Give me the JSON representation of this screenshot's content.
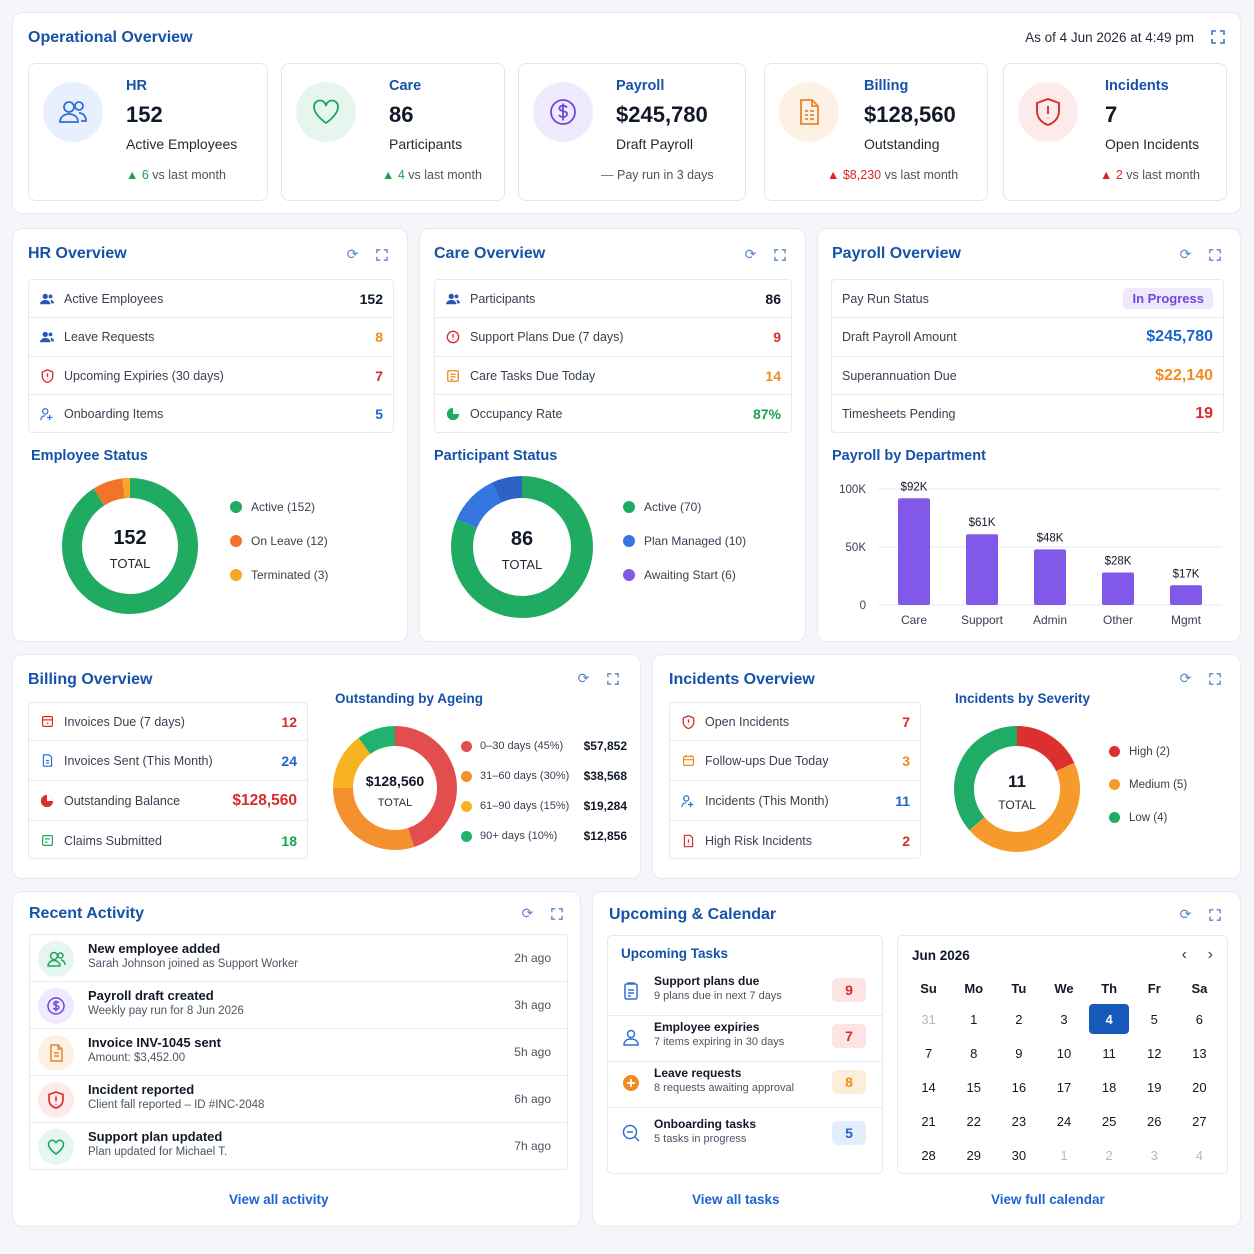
{
  "overview": {
    "title": "Operational Overview",
    "as_of": "As of 4 Jun 2026 at 4:49 pm",
    "kpis": [
      {
        "label": "HR",
        "value": "152",
        "desc": "Active Employees",
        "trend_value": "6",
        "trend_text": "vs last month",
        "icon": "users-icon"
      },
      {
        "label": "Care",
        "value": "86",
        "desc": "Participants",
        "trend_value": "4",
        "trend_text": "vs last month",
        "icon": "heart-icon"
      },
      {
        "label": "Payroll",
        "value": "$245,780",
        "desc": "Draft Payroll",
        "trend_value": "",
        "trend_text": "Pay run in 3 days",
        "icon": "dollar-icon"
      },
      {
        "label": "Billing",
        "value": "$128,560",
        "desc": "Outstanding",
        "trend_value": "$8,230",
        "trend_text": "vs last month",
        "icon": "invoice-icon"
      },
      {
        "label": "Incidents",
        "value": "7",
        "desc": "Open Incidents",
        "trend_value": "2",
        "trend_text": "vs last month",
        "icon": "shield-alert-icon"
      }
    ]
  },
  "hr": {
    "title": "HR Overview",
    "rows": [
      {
        "label": "Active Employees",
        "value": "152"
      },
      {
        "label": "Leave Requests",
        "value": "8"
      },
      {
        "label": "Upcoming Expiries (30 days)",
        "value": "7"
      },
      {
        "label": "Onboarding Items",
        "value": "5"
      }
    ],
    "status_title": "Employee Status",
    "donut_value": "152",
    "donut_label": "TOTAL",
    "legend": [
      "Active (152)",
      "On Leave (12)",
      "Terminated (3)"
    ]
  },
  "care": {
    "title": "Care Overview",
    "rows": [
      {
        "label": "Participants",
        "value": "86"
      },
      {
        "label": "Support Plans Due (7 days)",
        "value": "9"
      },
      {
        "label": "Care Tasks Due Today",
        "value": "14"
      },
      {
        "label": "Occupancy Rate",
        "value": "87%"
      }
    ],
    "status_title": "Participant Status",
    "donut_value": "86",
    "donut_label": "TOTAL",
    "legend": [
      "Active (70)",
      "Plan Managed (10)",
      "Awaiting Start (6)"
    ]
  },
  "payroll": {
    "title": "Payroll Overview",
    "rows": [
      {
        "label": "Pay Run Status",
        "value": "In Progress"
      },
      {
        "label": "Draft Payroll Amount",
        "value": "$245,780"
      },
      {
        "label": "Superannuation Due",
        "value": "$22,140"
      },
      {
        "label": "Timesheets Pending",
        "value": "19"
      }
    ],
    "chart_title": "Payroll by Department"
  },
  "billing": {
    "title": "Billing Overview",
    "rows": [
      {
        "label": "Invoices Due (7 days)",
        "value": "12"
      },
      {
        "label": "Invoices Sent (This Month)",
        "value": "24"
      },
      {
        "label": "Outstanding Balance",
        "value": "$128,560"
      },
      {
        "label": "Claims Submitted",
        "value": "18"
      }
    ],
    "ageing_title": "Outstanding by Ageing",
    "donut_value": "$128,560",
    "donut_label": "TOTAL",
    "ageing": [
      {
        "label": "0–30 days (45%)",
        "amount": "$57,852"
      },
      {
        "label": "31–60 days (30%)",
        "amount": "$38,568"
      },
      {
        "label": "61–90 days (15%)",
        "amount": "$19,284"
      },
      {
        "label": "90+ days (10%)",
        "amount": "$12,856"
      }
    ]
  },
  "incidents": {
    "title": "Incidents Overview",
    "rows": [
      {
        "label": "Open Incidents",
        "value": "7"
      },
      {
        "label": "Follow-ups Due Today",
        "value": "3"
      },
      {
        "label": "Incidents (This Month)",
        "value": "11"
      },
      {
        "label": "High Risk Incidents",
        "value": "2"
      }
    ],
    "severity_title": "Incidents by Severity",
    "donut_value": "11",
    "donut_label": "TOTAL",
    "legend": [
      "High (2)",
      "Medium (5)",
      "Low (4)"
    ]
  },
  "activity": {
    "title": "Recent Activity",
    "items": [
      {
        "title": "New employee added",
        "sub": "Sarah Johnson joined as Support Worker",
        "time": "2h ago"
      },
      {
        "title": "Payroll draft created",
        "sub": "Weekly pay run for 8 Jun 2026",
        "time": "3h ago"
      },
      {
        "title": "Invoice INV-1045 sent",
        "sub": "Amount: $3,452.00",
        "time": "5h ago"
      },
      {
        "title": "Incident reported",
        "sub": "Client fall reported – ID #INC-2048",
        "time": "6h ago"
      },
      {
        "title": "Support plan updated",
        "sub": "Plan updated for Michael T.",
        "time": "7h ago"
      }
    ],
    "link": "View all activity"
  },
  "upcoming": {
    "title": "Upcoming & Calendar",
    "tasks_title": "Upcoming Tasks",
    "tasks": [
      {
        "title": "Support plans due",
        "sub": "9 plans due in next 7 days",
        "count": "9"
      },
      {
        "title": "Employee expiries",
        "sub": "7 items expiring in 30 days",
        "count": "7"
      },
      {
        "title": "Leave requests",
        "sub": "8 requests awaiting approval",
        "count": "8"
      },
      {
        "title": "Onboarding tasks",
        "sub": "5 tasks in progress",
        "count": "5"
      }
    ],
    "tasks_link": "View all tasks",
    "calendar_month": "Jun 2026",
    "weekdays": [
      "Su",
      "Mo",
      "Tu",
      "We",
      "Th",
      "Fr",
      "Sa"
    ],
    "days": [
      "31",
      "1",
      "2",
      "3",
      "4",
      "5",
      "6",
      "7",
      "8",
      "9",
      "10",
      "11",
      "12",
      "13",
      "14",
      "15",
      "16",
      "17",
      "18",
      "19",
      "20",
      "21",
      "22",
      "23",
      "24",
      "25",
      "26",
      "27",
      "28",
      "29",
      "30",
      "1",
      "2",
      "3",
      "4"
    ],
    "selected_day": "4",
    "calendar_link": "View full calendar"
  },
  "chart_data": [
    {
      "type": "pie",
      "title": "Employee Status",
      "labels": [
        "Active",
        "On Leave",
        "Terminated"
      ],
      "values": [
        152,
        12,
        3
      ],
      "center_value": "152",
      "center_label": "TOTAL",
      "colors": [
        "#1fab62",
        "#f3732b",
        "#f6a524"
      ]
    },
    {
      "type": "pie",
      "title": "Participant Status",
      "labels": [
        "Active",
        "Plan Managed",
        "Awaiting Start"
      ],
      "values": [
        70,
        10,
        6
      ],
      "center_value": "86",
      "center_label": "TOTAL",
      "colors": [
        "#1fab62",
        "#3477e0",
        "#2d63c4"
      ]
    },
    {
      "type": "bar",
      "title": "Payroll by Department",
      "categories": [
        "Care",
        "Support",
        "Admin",
        "Other",
        "Mgmt"
      ],
      "values": [
        92,
        61,
        48,
        28,
        17
      ],
      "data_labels": [
        "$92K",
        "$61K",
        "$48K",
        "$28K",
        "$17K"
      ],
      "yticks": [
        "0",
        "50K",
        "100K"
      ],
      "ylim": [
        0,
        100
      ],
      "color": "#8158e8"
    },
    {
      "type": "pie",
      "title": "Outstanding by Ageing",
      "labels": [
        "0–30 days",
        "31–60 days",
        "61–90 days",
        "90+ days"
      ],
      "values": [
        45,
        30,
        15,
        10
      ],
      "center_value": "$128,560",
      "center_label": "TOTAL",
      "colors": [
        "#e44d4d",
        "#f5902e",
        "#f7b21f",
        "#21b26e"
      ]
    },
    {
      "type": "pie",
      "title": "Incidents by Severity",
      "labels": [
        "High",
        "Medium",
        "Low"
      ],
      "values": [
        2,
        5,
        4
      ],
      "center_value": "11",
      "center_label": "TOTAL",
      "colors": [
        "#dc2f2f",
        "#f59a2b",
        "#20ab66"
      ]
    }
  ]
}
